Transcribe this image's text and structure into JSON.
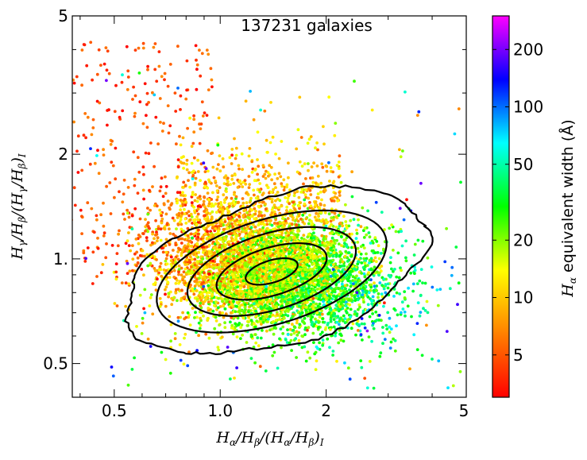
{
  "chart_data": {
    "type": "scatter",
    "title": "",
    "annotation": "137231 galaxies",
    "xlabel": "Hα/Hβ/(Hα/Hβ)_I",
    "ylabel": "Hγ/Hβ/(Hγ/Hβ)_I",
    "xscale": "log",
    "yscale": "log",
    "xlim": [
      0.38,
      5
    ],
    "ylim": [
      0.4,
      5
    ],
    "x_tick_labels": [
      "0.5",
      "1.0",
      "2",
      "5"
    ],
    "x_tick_values": [
      0.5,
      1.0,
      2,
      5
    ],
    "y_tick_labels": [
      "0.5",
      "1.",
      "2",
      "5"
    ],
    "y_tick_values": [
      0.5,
      1.0,
      2,
      5
    ],
    "n_points": 137231,
    "color_variable": "Hα equivalent width (Å)",
    "colorbar": {
      "label": "Hα  equivalent width (Å)",
      "scale": "log",
      "range": [
        3,
        300
      ],
      "tick_labels": [
        "5",
        "10",
        "20",
        "50",
        "100",
        "200"
      ],
      "tick_values": [
        5,
        10,
        20,
        50,
        100,
        200
      ],
      "colormap": [
        "#ff0000",
        "#ff8000",
        "#ffff00",
        "#00ff00",
        "#00ffff",
        "#0000ff",
        "#ff00ff"
      ]
    },
    "density_peak": {
      "x": 1.4,
      "y": 0.92
    },
    "contour_levels": 5,
    "legend": "none",
    "grid": false
  }
}
